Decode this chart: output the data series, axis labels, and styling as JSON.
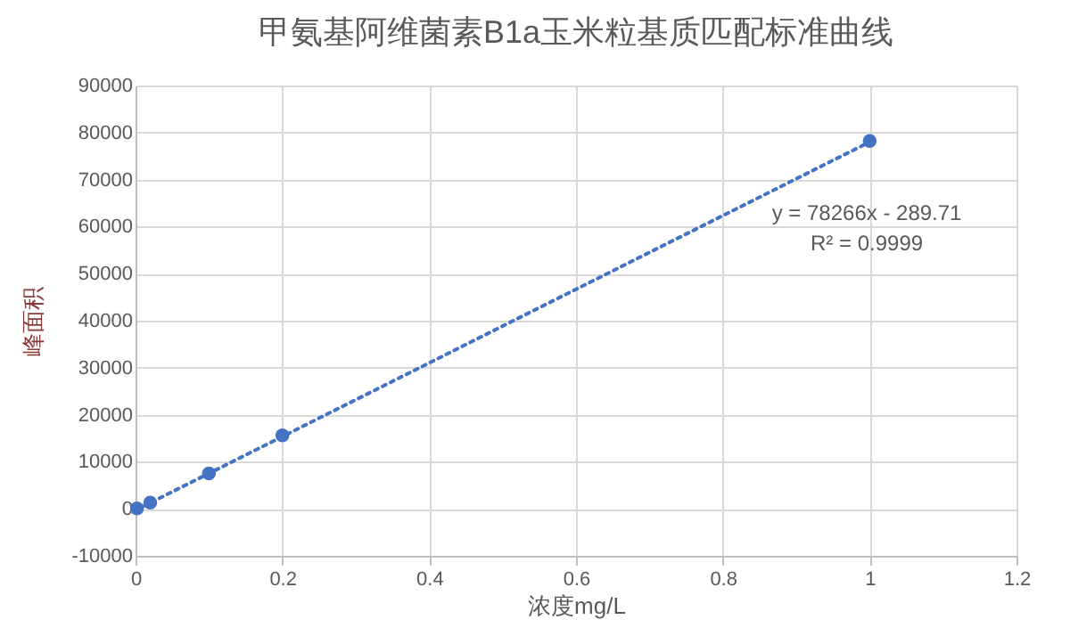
{
  "chart_data": {
    "type": "scatter",
    "title": "甲氨基阿维菌素B1a玉米粒基质匹配标准曲线",
    "xlabel": "浓度mg/L",
    "ylabel": "峰面积",
    "xlim": [
      0,
      1.2
    ],
    "xticks": [
      0,
      0.2,
      0.4,
      0.6,
      0.8,
      1,
      1.2
    ],
    "ylim": [
      -10000,
      90000
    ],
    "yticks": [
      -10000,
      0,
      10000,
      20000,
      30000,
      40000,
      50000,
      60000,
      70000,
      80000,
      90000
    ],
    "grid": true,
    "series": [
      {
        "color": "#4472c4",
        "marker": "circle",
        "x": [
          0.002,
          0.02,
          0.1,
          0.2,
          1
        ],
        "values": [
          100,
          1300,
          7500,
          15600,
          78200
        ]
      },
      {
        "type": "line",
        "color": "#4472c4",
        "line_style": "dotted",
        "x": [
          0,
          1
        ],
        "values": [
          -300,
          78000
        ]
      }
    ],
    "annotations": [
      "y = 78266x - 289.71",
      "R² = 0.9999"
    ]
  }
}
